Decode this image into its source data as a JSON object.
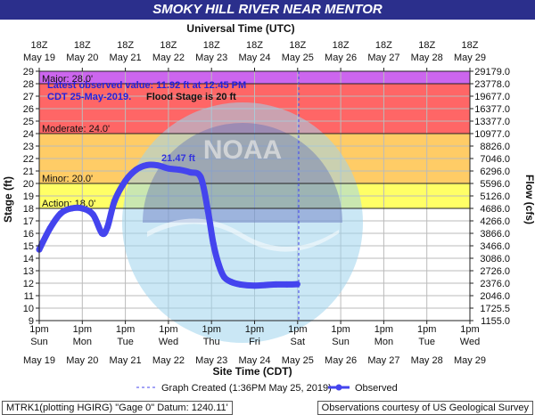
{
  "title": "SMOKY HILL RIVER NEAR MENTOR",
  "top_axis_title": "Universal Time (UTC)",
  "bottom_axis_title": "Site Time (CDT)",
  "left_axis_title": "Stage (ft)",
  "right_axis_title": "Flow (cfs)",
  "colors": {
    "title_bg": "#2b2f8c",
    "major": "#cc66ee",
    "moderate": "#ff6666",
    "minor": "#ffcc66",
    "action": "#ffff66",
    "series": "#4444ee",
    "created_line": "#4444ee"
  },
  "stages": {
    "major_label": "Major: 28.0'",
    "moderate_label": "Moderate: 24.0'",
    "minor_label": "Minor: 20.0'",
    "action_label": "Action: 18.0'"
  },
  "annotations": {
    "line1": "Latest observed value: 11.92 ft at 12:45 PM",
    "line2a": "CDT 25-May-2019.",
    "line2b": "Flood Stage is 20 ft",
    "peak_label": "21.47 ft"
  },
  "legend": {
    "created": "Graph Created (1:36PM May 25, 2019)",
    "observed": "Observed"
  },
  "footer": {
    "left": "MTRK1(plotting HGIRG) \"Gage 0\" Datum: 1240.11'",
    "right": "Observations courtesy of US Geological Survey"
  },
  "chart_data": {
    "type": "line",
    "title": "SMOKY HILL RIVER NEAR MENTOR",
    "xlabel": "Site Time (CDT)",
    "ylabel": "Stage (ft)",
    "y2label": "Flow (cfs)",
    "ylim": [
      9,
      29
    ],
    "grid": true,
    "legend_position": "bottom",
    "stage_ticks": [
      9,
      10,
      11,
      12,
      13,
      14,
      15,
      16,
      17,
      18,
      19,
      20,
      21,
      22,
      23,
      24,
      25,
      26,
      27,
      28,
      29
    ],
    "flow_ticks": [
      "1155.0",
      "1725.5",
      "2046.0",
      "2376.0",
      "2726.0",
      "3086.0",
      "3466.0",
      "3866.0",
      "4266.0",
      "4686.0",
      "5126.0",
      "5596.0",
      "6296.0",
      "7046.0",
      "8826.0",
      "10977.0",
      "13377.0",
      "16377.0",
      "19677.0",
      "23778.0",
      "29179.0"
    ],
    "top_ticks": [
      {
        "hour": "18Z",
        "date": "May 19"
      },
      {
        "hour": "18Z",
        "date": "May 20"
      },
      {
        "hour": "18Z",
        "date": "May 21"
      },
      {
        "hour": "18Z",
        "date": "May 22"
      },
      {
        "hour": "18Z",
        "date": "May 23"
      },
      {
        "hour": "18Z",
        "date": "May 24"
      },
      {
        "hour": "18Z",
        "date": "May 25"
      },
      {
        "hour": "18Z",
        "date": "May 26"
      },
      {
        "hour": "18Z",
        "date": "May 27"
      },
      {
        "hour": "18Z",
        "date": "May 28"
      },
      {
        "hour": "18Z",
        "date": "May 29"
      }
    ],
    "bottom_ticks": [
      {
        "time": "1pm",
        "day": "Sun",
        "date": "May 19"
      },
      {
        "time": "1pm",
        "day": "Mon",
        "date": "May 20"
      },
      {
        "time": "1pm",
        "day": "Tue",
        "date": "May 21"
      },
      {
        "time": "1pm",
        "day": "Wed",
        "date": "May 22"
      },
      {
        "time": "1pm",
        "day": "Thu",
        "date": "May 23"
      },
      {
        "time": "1pm",
        "day": "Fri",
        "date": "May 24"
      },
      {
        "time": "1pm",
        "day": "Sat",
        "date": "May 25"
      },
      {
        "time": "1pm",
        "day": "Sun",
        "date": "May 26"
      },
      {
        "time": "1pm",
        "day": "Mon",
        "date": "May 27"
      },
      {
        "time": "1pm",
        "day": "Tue",
        "date": "May 28"
      },
      {
        "time": "1pm",
        "day": "Wed",
        "date": "May 29"
      }
    ],
    "flood_categories": [
      {
        "name": "Major",
        "from": 28,
        "to": 29
      },
      {
        "name": "Moderate",
        "from": 24,
        "to": 28
      },
      {
        "name": "Minor",
        "from": 20,
        "to": 24
      },
      {
        "name": "Action",
        "from": 18,
        "to": 20
      }
    ],
    "graph_created": "2019-05-25 13:36",
    "series": [
      {
        "name": "Observed",
        "x": [
          "2019-05-19 13:00",
          "2019-05-19 19:00",
          "2019-05-20 01:00",
          "2019-05-20 07:00",
          "2019-05-20 13:00",
          "2019-05-20 19:00",
          "2019-05-21 00:00",
          "2019-05-21 03:00",
          "2019-05-21 07:00",
          "2019-05-21 13:00",
          "2019-05-21 19:00",
          "2019-05-22 01:00",
          "2019-05-22 07:00",
          "2019-05-22 13:00",
          "2019-05-22 19:00",
          "2019-05-23 01:00",
          "2019-05-23 07:00",
          "2019-05-23 11:00",
          "2019-05-23 14:00",
          "2019-05-23 17:00",
          "2019-05-23 20:00",
          "2019-05-24 00:00",
          "2019-05-24 05:00",
          "2019-05-24 13:00",
          "2019-05-24 19:00",
          "2019-05-25 01:00",
          "2019-05-25 07:00",
          "2019-05-25 12:45"
        ],
        "values": [
          14.7,
          16.4,
          17.6,
          18.0,
          18.0,
          17.5,
          16.0,
          16.5,
          18.6,
          20.2,
          21.1,
          21.47,
          21.45,
          21.2,
          21.1,
          20.9,
          20.5,
          17.8,
          15.2,
          13.5,
          12.5,
          12.1,
          11.9,
          11.8,
          11.85,
          11.9,
          11.9,
          11.92
        ]
      }
    ]
  }
}
